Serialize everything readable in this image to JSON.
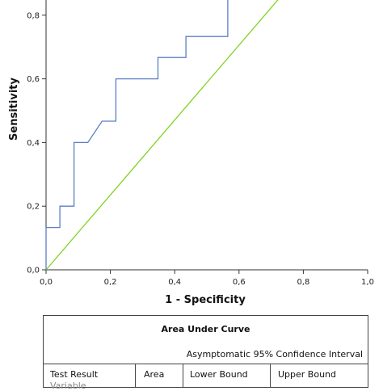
{
  "chart_data": {
    "type": "line",
    "xlabel": "1 - Specificity",
    "ylabel": "Sensitivity",
    "xlim": [
      0,
      1
    ],
    "ylim": [
      0,
      1
    ],
    "x_ticks": [
      "0,0",
      "0,2",
      "0,4",
      "0,6",
      "0,8",
      "1,0"
    ],
    "y_ticks": [
      "0,0",
      "0,2",
      "0,4",
      "0,6",
      "0,8"
    ],
    "colors": {
      "roc": "#5b7fc4",
      "reference": "#7ed321"
    },
    "series": [
      {
        "role": "roc-curve",
        "points": [
          [
            0,
            0
          ],
          [
            0,
            0.133
          ],
          [
            0.043,
            0.133
          ],
          [
            0.043,
            0.2
          ],
          [
            0.087,
            0.2
          ],
          [
            0.087,
            0.4
          ],
          [
            0.13,
            0.4
          ],
          [
            0.174,
            0.467
          ],
          [
            0.217,
            0.467
          ],
          [
            0.217,
            0.6
          ],
          [
            0.348,
            0.6
          ],
          [
            0.348,
            0.667
          ],
          [
            0.435,
            0.667
          ],
          [
            0.435,
            0.733
          ],
          [
            0.565,
            0.733
          ],
          [
            0.565,
            0.8
          ],
          [
            0.565,
            1.0
          ]
        ]
      },
      {
        "role": "reference-line",
        "points": [
          [
            0,
            0
          ],
          [
            0.85,
            1.0
          ]
        ]
      }
    ]
  },
  "table": {
    "title": "Area Under Curve",
    "header_note": "Asymptomatic 95% Confidence Interval",
    "col_test": "Test Result",
    "col_test_sub": "Variable",
    "col_area": "Area",
    "col_lower": "Lower Bound",
    "col_upper": "Upper Bound"
  }
}
